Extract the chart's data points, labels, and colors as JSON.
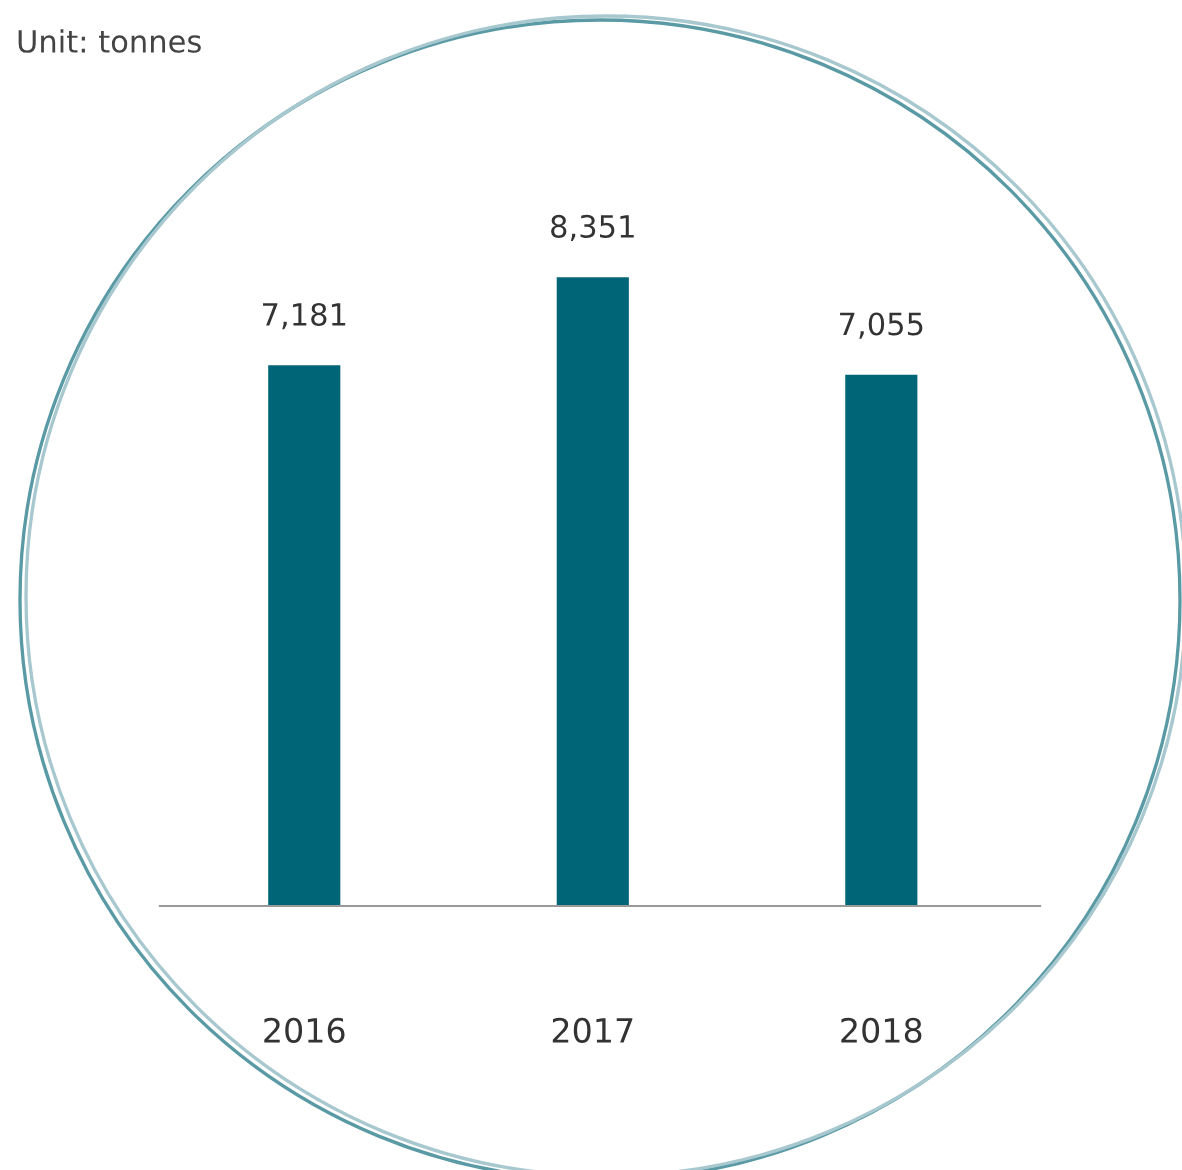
{
  "chart_data": {
    "type": "bar",
    "annotations": [
      "Unit: tonnes"
    ],
    "categories": [
      "2016",
      "2017",
      "2018"
    ],
    "values": [
      7181,
      8351,
      7055
    ],
    "value_labels": [
      "7,181",
      "8,351",
      "7,055"
    ],
    "color": "#006677",
    "grid": false,
    "legend": false
  }
}
